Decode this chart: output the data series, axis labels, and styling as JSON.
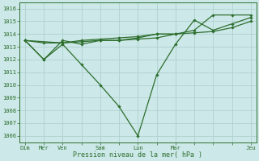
{
  "background_color": "#cce8e8",
  "grid_color": "#aacccc",
  "line_color": "#2d6e2d",
  "marker_color": "#2d6e2d",
  "xlabel": "Pression niveau de la mer( hPa )",
  "ylim": [
    1005.5,
    1016.5
  ],
  "xlim": [
    -0.3,
    12.3
  ],
  "yticks": [
    1006,
    1007,
    1008,
    1009,
    1010,
    1011,
    1012,
    1013,
    1014,
    1015,
    1016
  ],
  "xtick_labels": [
    "Dim",
    "Mer",
    "Ven",
    "",
    "Sam",
    "",
    "Lun",
    "",
    "Mar",
    "",
    "",
    "",
    "Jeu"
  ],
  "xtick_positions": [
    0,
    1,
    2,
    3,
    4,
    5,
    6,
    7,
    8,
    9,
    10,
    11,
    12
  ],
  "series": [
    {
      "x": [
        0,
        1,
        2,
        3,
        4,
        5,
        6,
        7,
        8,
        9,
        10,
        11,
        12
      ],
      "y": [
        1013.5,
        1012.0,
        1013.2,
        1011.6,
        1010.0,
        1008.3,
        1006.0,
        1010.8,
        1013.2,
        1015.1,
        1014.3,
        1014.8,
        1015.3
      ]
    },
    {
      "x": [
        0,
        1,
        2,
        3,
        4,
        5,
        6,
        7,
        8,
        9,
        10,
        11,
        12
      ],
      "y": [
        1013.5,
        1013.3,
        1013.3,
        1013.4,
        1013.5,
        1013.5,
        1013.6,
        1013.7,
        1014.0,
        1014.1,
        1014.2,
        1014.5,
        1015.0
      ]
    },
    {
      "x": [
        0,
        2,
        3,
        4,
        5,
        6,
        7,
        8,
        9,
        10,
        11,
        12
      ],
      "y": [
        1013.5,
        1013.3,
        1013.5,
        1013.6,
        1013.7,
        1013.8,
        1014.0,
        1014.0,
        1014.3,
        1015.5,
        1015.5,
        1015.5
      ]
    },
    {
      "x": [
        0,
        1,
        2,
        3,
        4,
        5,
        6,
        7,
        8
      ],
      "y": [
        1013.5,
        1012.0,
        1013.5,
        1013.2,
        1013.5,
        1013.5,
        1013.7,
        1014.0,
        1014.0
      ]
    }
  ]
}
